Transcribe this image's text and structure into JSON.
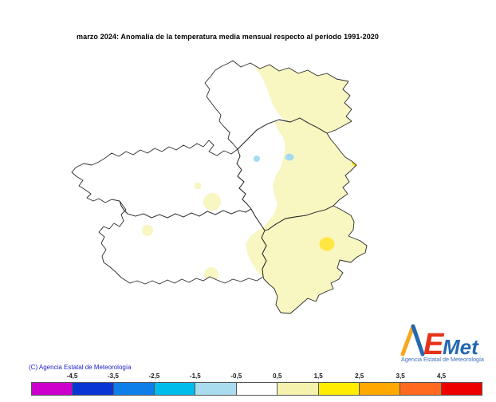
{
  "title": "marzo 2024: Anomalía de la temperatura media mensual respecto al periodo 1991-2020",
  "copyright": "(C) Agencia Estatal de Meteorología",
  "logo": {
    "a": "A",
    "e": "E",
    "met": "Met",
    "caption": "Agencia Estatal de Meteorología"
  },
  "legend": {
    "tick_labels": [
      "-4,5",
      "-3,5",
      "-2,5",
      "-1,5",
      "-0,5",
      "0,5",
      "1,5",
      "2,5",
      "3,5",
      "4,5"
    ],
    "colors": [
      "#CC00CC",
      "#0A35D5",
      "#0E7EE8",
      "#00BCEC",
      "#AADCF0",
      "#FFFFFF",
      "#F5F2AE",
      "#FFEC00",
      "#FFA800",
      "#FF6A1E",
      "#EE0000"
    ]
  },
  "map": {
    "outline_color": "#2B2B2B",
    "fill_light_yellow": "#F8F6C1",
    "fill_yellow": "#FFE742",
    "fill_yellow_sliver": "#FFE800",
    "fill_light_blue": "#A6DBF2",
    "background": "#FFFFFF"
  }
}
